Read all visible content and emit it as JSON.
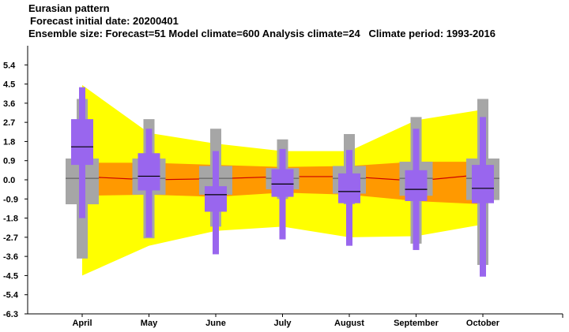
{
  "header": {
    "title": "Eurasian pattern",
    "line2": "Forecast initial date: 20200401",
    "line3": "Ensemble size: Forecast=51 Model climate=600 Analysis climate=24   Climate period: 1993-2016"
  },
  "colors": {
    "outer_band": "#ffff00",
    "inner_band": "#ff9900",
    "climate_box": "#a6a6a6",
    "forecast_box": "#9966ee",
    "median_line": "#cc0000",
    "median_tick": "#000000"
  },
  "chart_data": {
    "type": "box",
    "categories": [
      "April",
      "May",
      "June",
      "July",
      "August",
      "September",
      "October"
    ],
    "y_ticks": [
      "5.4",
      "4.5",
      "3.6",
      "2.7",
      "1.8",
      "0.9",
      "0.0",
      "-0.9",
      "-1.8",
      "-2.7",
      "-3.6",
      "-4.5",
      "-5.4",
      "-6.3"
    ],
    "ylim": [
      -6.3,
      6.3
    ],
    "forecast_distribution_band": {
      "outer_upper": [
        4.45,
        2.2,
        1.7,
        1.35,
        1.35,
        2.8,
        3.3
      ],
      "outer_lower": [
        -4.5,
        -3.1,
        -2.4,
        -2.2,
        -2.7,
        -2.65,
        -2.1
      ],
      "inner_upper": [
        0.8,
        0.8,
        0.7,
        0.6,
        0.65,
        0.85,
        0.85
      ],
      "inner_lower": [
        -0.75,
        -0.7,
        -0.8,
        -0.6,
        -0.7,
        -1.0,
        -1.15
      ],
      "median": [
        0.15,
        0.0,
        0.05,
        0.15,
        0.15,
        -0.05,
        0.25
      ]
    },
    "climate": [
      {
        "min": -3.7,
        "q1": -1.15,
        "median": 0.07,
        "q3": 1.0,
        "max": 3.8
      },
      {
        "min": -2.75,
        "q1": -0.7,
        "median": 0.07,
        "q3": 1.0,
        "max": 2.85
      },
      {
        "min": -2.2,
        "q1": -0.7,
        "median": 0.07,
        "q3": 0.65,
        "max": 2.4
      },
      {
        "min": -0.9,
        "q1": -0.45,
        "median": 0.07,
        "q3": 0.55,
        "max": 1.9
      },
      {
        "min": -1.15,
        "q1": -0.65,
        "median": 0.07,
        "q3": 0.65,
        "max": 2.15
      },
      {
        "min": -3.0,
        "q1": -0.75,
        "median": 0.07,
        "q3": 0.85,
        "max": 2.95
      },
      {
        "min": -4.0,
        "q1": -0.95,
        "median": 0.07,
        "q3": 1.0,
        "max": 3.8
      }
    ],
    "forecast": [
      {
        "min": -1.8,
        "p25": 0.7,
        "median": 1.55,
        "p75": 2.85,
        "max": 4.35
      },
      {
        "min": -2.7,
        "p25": -0.5,
        "median": 0.17,
        "p75": 1.25,
        "max": 2.4
      },
      {
        "min": -3.5,
        "p25": -1.5,
        "median": -0.7,
        "p75": -0.3,
        "max": 1.35
      },
      {
        "min": -2.8,
        "p25": -0.8,
        "median": -0.2,
        "p75": 0.5,
        "max": 1.45
      },
      {
        "min": -3.1,
        "p25": -1.1,
        "median": -0.55,
        "p75": 0.3,
        "max": 1.4
      },
      {
        "min": -3.3,
        "p25": -1.0,
        "median": -0.45,
        "p75": 0.45,
        "max": 2.4
      },
      {
        "min": -4.55,
        "p25": -1.1,
        "median": -0.4,
        "p75": 0.7,
        "max": 2.95
      }
    ],
    "grid": false,
    "legend": "none"
  }
}
